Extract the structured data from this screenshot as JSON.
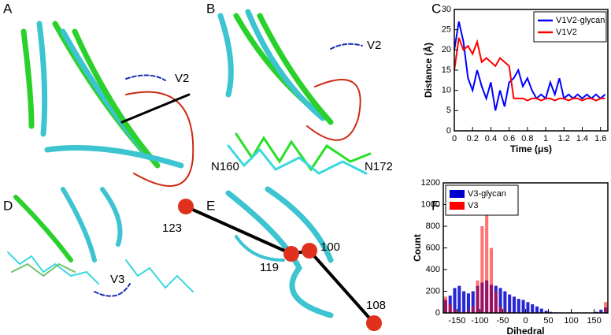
{
  "panels": [
    {
      "label": "A",
      "annotations": [
        "V2"
      ]
    },
    {
      "label": "B",
      "annotations": [
        "V2",
        "N160",
        "N172"
      ]
    },
    {
      "label": "C"
    },
    {
      "label": "D",
      "annotations": [
        "V3"
      ]
    },
    {
      "label": "E",
      "annotations": [
        "123",
        "119",
        "100",
        "108"
      ]
    },
    {
      "label": "F"
    }
  ],
  "chart_data": [
    {
      "type": "line",
      "xlabel": "Time (μs)",
      "ylabel": "Distance (Å)",
      "x": [
        0,
        0.05,
        0.1,
        0.15,
        0.2,
        0.25,
        0.3,
        0.35,
        0.4,
        0.45,
        0.5,
        0.55,
        0.6,
        0.65,
        0.7,
        0.75,
        0.8,
        0.85,
        0.9,
        0.95,
        1.0,
        1.05,
        1.1,
        1.15,
        1.2,
        1.25,
        1.3,
        1.35,
        1.4,
        1.45,
        1.5,
        1.55,
        1.6,
        1.65
      ],
      "series": [
        {
          "name": "V1V2-glycan",
          "color": "#0000ff",
          "values": [
            20,
            27,
            22,
            13,
            10,
            15,
            11,
            8,
            12,
            5,
            10,
            6,
            12,
            13,
            15,
            11,
            13,
            10,
            8,
            9,
            8,
            12,
            9,
            13,
            8,
            9,
            8,
            9,
            8,
            9,
            8,
            9,
            8,
            9
          ]
        },
        {
          "name": "V1V2",
          "color": "#ff0000",
          "values": [
            15,
            23,
            20,
            21,
            19,
            22,
            17,
            18,
            17,
            16,
            18,
            17,
            16,
            8,
            8,
            8,
            7.5,
            8,
            8,
            7.5,
            8,
            8,
            7.5,
            8,
            8,
            7.5,
            8,
            8,
            7.5,
            8,
            8,
            7.5,
            8,
            8
          ]
        }
      ],
      "xlim": [
        0,
        1.68
      ],
      "xticks": [
        0,
        0.2,
        0.4,
        0.6,
        0.8,
        1,
        1.2,
        1.4,
        1.6
      ],
      "ylim": [
        0,
        30
      ],
      "yticks": [
        0,
        5,
        10,
        15,
        20,
        25,
        30
      ],
      "legend": "upper right"
    },
    {
      "type": "histogram",
      "xlabel": "Dihedral",
      "ylabel": "Count",
      "bins": [
        -180,
        -170,
        -160,
        -150,
        -140,
        -130,
        -120,
        -110,
        -100,
        -90,
        -80,
        -70,
        -60,
        -50,
        -40,
        -30,
        -20,
        -10,
        0,
        10,
        20,
        30,
        40,
        50,
        60,
        70,
        80,
        90,
        100,
        110,
        120,
        130,
        140,
        150,
        160,
        170,
        180
      ],
      "series": [
        {
          "name": "V3-glycan",
          "color": "#0000cc",
          "values": [
            120,
            160,
            230,
            250,
            200,
            180,
            200,
            250,
            280,
            300,
            260,
            250,
            230,
            200,
            170,
            150,
            130,
            120,
            100,
            80,
            60,
            40,
            20,
            10,
            5,
            0,
            0,
            0,
            0,
            0,
            0,
            0,
            0,
            10,
            30,
            50
          ]
        },
        {
          "name": "V3",
          "color": "#ff0000",
          "values": [
            150,
            80,
            30,
            10,
            10,
            20,
            60,
            300,
            800,
            1050,
            600,
            200,
            60,
            20,
            5,
            0,
            0,
            0,
            0,
            0,
            0,
            0,
            0,
            0,
            0,
            0,
            0,
            0,
            0,
            0,
            0,
            0,
            0,
            0,
            0,
            100
          ]
        }
      ],
      "xlim": [
        -180,
        180
      ],
      "xticks": [
        -150,
        -100,
        -50,
        0,
        50,
        100,
        150
      ],
      "ylim": [
        0,
        1200
      ],
      "yticks": [
        0,
        200,
        400,
        600,
        800,
        1000,
        1200
      ],
      "legend": "upper left"
    }
  ]
}
